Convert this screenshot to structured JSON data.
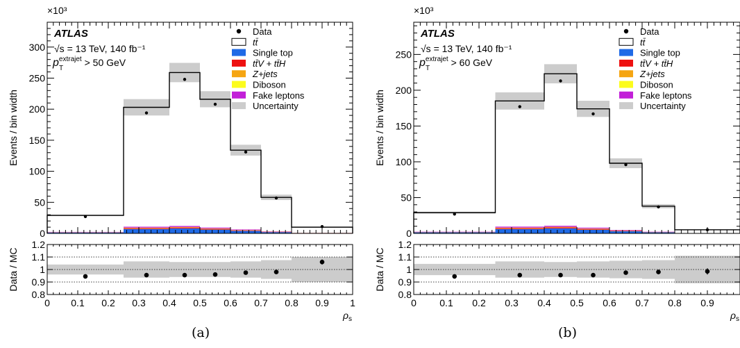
{
  "colors": {
    "single_top": "#1f6ae6",
    "ttV_ttH": "#ee1111",
    "zjets": "#f5a512",
    "diboson": "#fcfc1c",
    "fake_leptons": "#c21fd8",
    "uncertainty": "#cccccc"
  },
  "chart_data": [
    {
      "type": "histogram",
      "panel_label": "(a)",
      "experiment": "ATLAS",
      "energy_label": "√s = 13 TeV, 140 fb⁻¹",
      "cut_label": "p_T^extrajet > 50 GeV",
      "multiplier_label": "×10³",
      "ylabel": "Events / bin width",
      "ratio_ylabel": "Data / MC",
      "xlabel": "ρs",
      "bin_edges": [
        0,
        0.25,
        0.4,
        0.5,
        0.6,
        0.7,
        0.8,
        1.0
      ],
      "bin_centers_data": [
        0.125,
        0.325,
        0.45,
        0.55,
        0.65,
        0.75,
        0.9
      ],
      "ylim": [
        0,
        340
      ],
      "yticks": [
        0,
        50,
        100,
        150,
        200,
        250,
        300
      ],
      "ratio_ylim": [
        0.8,
        1.2
      ],
      "ratio_yticks": [
        0.8,
        0.9,
        1,
        1.1,
        1.2
      ],
      "xticks": [
        0,
        0.1,
        0.2,
        0.3,
        0.4,
        0.5,
        0.6,
        0.7,
        0.8,
        0.9,
        1
      ],
      "legend": [
        "Data",
        "tt̄",
        "Single top",
        "tt̄V + tt̄H",
        "Z+jets",
        "Diboson",
        "Fake leptons",
        "Uncertainty"
      ],
      "series": [
        {
          "name": "Data",
          "values": [
            27,
            194,
            248,
            208,
            131,
            57,
            11
          ]
        },
        {
          "name": "tt̄",
          "values": [
            29,
            203,
            259,
            216,
            134,
            58,
            10
          ]
        },
        {
          "name": "Single top",
          "values": [
            1.5,
            7,
            8,
            6,
            4,
            2,
            0.5
          ]
        },
        {
          "name": "tt̄V + tt̄H",
          "values": [
            0.3,
            1.2,
            1.3,
            1.1,
            0.8,
            0.4,
            0.1
          ]
        },
        {
          "name": "Z+jets",
          "values": [
            0.2,
            0.8,
            0.8,
            0.7,
            0.5,
            0.3,
            0.1
          ]
        },
        {
          "name": "Diboson",
          "values": [
            0.05,
            0.2,
            0.2,
            0.2,
            0.1,
            0.05,
            0.02
          ]
        },
        {
          "name": "Fake leptons",
          "values": [
            0.3,
            1.5,
            1.6,
            1.3,
            0.9,
            0.5,
            0.1
          ]
        }
      ],
      "uncertainty": [
        0.04,
        0.065,
        0.06,
        0.06,
        0.065,
        0.075,
        0.1
      ],
      "ratio": [
        0.945,
        0.955,
        0.955,
        0.96,
        0.975,
        0.98,
        1.06
      ],
      "ratio_err": [
        0.004,
        0.003,
        0.003,
        0.003,
        0.004,
        0.006,
        0.02
      ]
    },
    {
      "type": "histogram",
      "panel_label": "(b)",
      "experiment": "ATLAS",
      "energy_label": "√s = 13 TeV, 140 fb⁻¹",
      "cut_label": "p_T^extrajet > 60 GeV",
      "multiplier_label": "×10³",
      "ylabel": "Events / bin width",
      "ratio_ylabel": "Data / MC",
      "xlabel": "ρs",
      "bin_edges": [
        0,
        0.25,
        0.4,
        0.5,
        0.6,
        0.7,
        0.8,
        1.0
      ],
      "bin_centers_data": [
        0.125,
        0.325,
        0.45,
        0.55,
        0.65,
        0.75,
        0.9
      ],
      "ylim": [
        0,
        295
      ],
      "yticks": [
        0,
        50,
        100,
        150,
        200,
        250
      ],
      "ratio_ylim": [
        0.8,
        1.2
      ],
      "ratio_yticks": [
        0.8,
        0.9,
        1,
        1.1,
        1.2
      ],
      "xticks": [
        0,
        0.1,
        0.2,
        0.3,
        0.4,
        0.5,
        0.6,
        0.7,
        0.8,
        0.9
      ],
      "legend": [
        "Data",
        "tt̄",
        "Single top",
        "tt̄V + tt̄H",
        "Z+jets",
        "Diboson",
        "Fake leptons",
        "Uncertainty"
      ],
      "series": [
        {
          "name": "Data",
          "values": [
            27,
            177,
            213,
            167,
            96,
            37,
            5
          ]
        },
        {
          "name": "tt̄",
          "values": [
            29,
            185,
            223,
            174,
            98,
            38,
            5
          ]
        },
        {
          "name": "Single top",
          "values": [
            1.5,
            6,
            7,
            5,
            3,
            1.5,
            0.3
          ]
        },
        {
          "name": "tt̄V + tt̄H",
          "values": [
            0.3,
            1.1,
            1.2,
            1.0,
            0.6,
            0.3,
            0.05
          ]
        },
        {
          "name": "Z+jets",
          "values": [
            0.2,
            0.7,
            0.7,
            0.6,
            0.4,
            0.2,
            0.05
          ]
        },
        {
          "name": "Diboson",
          "values": [
            0.05,
            0.2,
            0.2,
            0.15,
            0.1,
            0.05,
            0.01
          ]
        },
        {
          "name": "Fake leptons",
          "values": [
            0.3,
            1.4,
            1.5,
            1.2,
            0.7,
            0.3,
            0.05
          ]
        }
      ],
      "uncertainty": [
        0.045,
        0.065,
        0.06,
        0.065,
        0.07,
        0.075,
        0.11
      ],
      "ratio": [
        0.945,
        0.955,
        0.955,
        0.955,
        0.975,
        0.98,
        0.985
      ],
      "ratio_err": [
        0.004,
        0.003,
        0.003,
        0.003,
        0.004,
        0.007,
        0.025
      ]
    }
  ]
}
